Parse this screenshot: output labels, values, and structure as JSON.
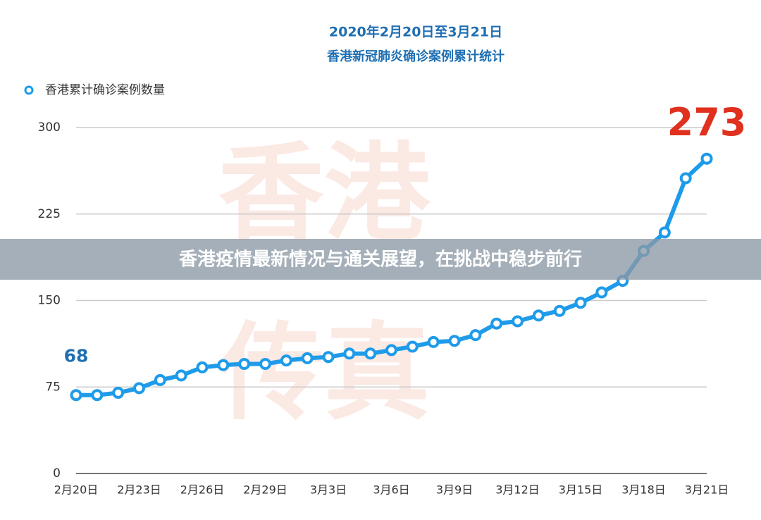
{
  "chart_data": {
    "type": "line",
    "title": "2020年2月20日至3月21日",
    "subtitle": "香港新冠肺炎确诊案例累计统计",
    "watermark": [
      "香港",
      "传真"
    ],
    "banner": "香港疫情最新情况与通关展望，在挑战中稳步前行",
    "categories": [
      "2月20日",
      null,
      null,
      "2月23日",
      null,
      null,
      "2月26日",
      null,
      null,
      "2月29日",
      null,
      null,
      "3月3日",
      null,
      null,
      "3月6日",
      null,
      null,
      "3月9日",
      null,
      null,
      "3月12日",
      null,
      null,
      "3月15日",
      null,
      null,
      "3月18日",
      null,
      null,
      "3月21日"
    ],
    "series": [
      {
        "name": "香港累计确诊案例数量",
        "color": "#1e9be9",
        "values": [
          68,
          68,
          70,
          74,
          81,
          85,
          92,
          94,
          95,
          95,
          98,
          100,
          101,
          104,
          104,
          107,
          110,
          114,
          115,
          120,
          130,
          132,
          137,
          141,
          148,
          157,
          167,
          193,
          209,
          256,
          273
        ]
      }
    ],
    "ylim": [
      0,
      300
    ],
    "yticks": [
      0,
      75,
      150,
      225,
      300
    ],
    "grid": true
  }
}
